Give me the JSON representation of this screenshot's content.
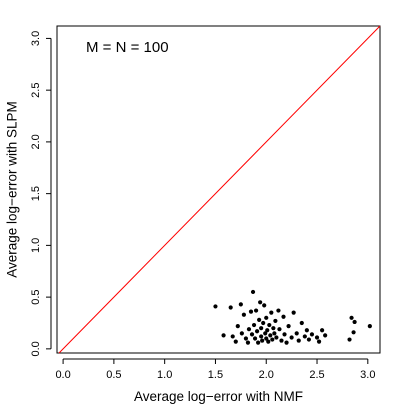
{
  "chart_data": {
    "type": "scatter",
    "xlabel": "Average log−error with NMF",
    "ylabel": "Average log−error with SLPM",
    "annotation": "M = N = 100",
    "xlim": [
      -0.06,
      3.12
    ],
    "ylim": [
      -0.04,
      3.12
    ],
    "x_ticks": [
      "0.0",
      "0.5",
      "1.0",
      "1.5",
      "2.0",
      "2.5",
      "3.0"
    ],
    "y_ticks": [
      "0.0",
      "0.5",
      "1.0",
      "1.5",
      "2.0",
      "2.5",
      "3.0"
    ],
    "grid": false,
    "reference_line": {
      "label": "y = x",
      "color": "#ff0000"
    },
    "point_color": "#000000",
    "points": [
      [
        1.5,
        0.41
      ],
      [
        1.58,
        0.13
      ],
      [
        1.65,
        0.4
      ],
      [
        1.67,
        0.12
      ],
      [
        1.7,
        0.07
      ],
      [
        1.72,
        0.22
      ],
      [
        1.75,
        0.43
      ],
      [
        1.76,
        0.15
      ],
      [
        1.78,
        0.33
      ],
      [
        1.8,
        0.1
      ],
      [
        1.82,
        0.06
      ],
      [
        1.83,
        0.19
      ],
      [
        1.85,
        0.36
      ],
      [
        1.86,
        0.14
      ],
      [
        1.87,
        0.55
      ],
      [
        1.88,
        0.23
      ],
      [
        1.89,
        0.1
      ],
      [
        1.9,
        0.37
      ],
      [
        1.91,
        0.17
      ],
      [
        1.92,
        0.06
      ],
      [
        1.93,
        0.28
      ],
      [
        1.94,
        0.45
      ],
      [
        1.95,
        0.12
      ],
      [
        1.95,
        0.2
      ],
      [
        1.96,
        0.08
      ],
      [
        1.97,
        0.25
      ],
      [
        1.98,
        0.42
      ],
      [
        1.99,
        0.15
      ],
      [
        2.0,
        0.3
      ],
      [
        2.0,
        0.1
      ],
      [
        2.01,
        0.18
      ],
      [
        2.02,
        0.07
      ],
      [
        2.03,
        0.23
      ],
      [
        2.04,
        0.13
      ],
      [
        2.05,
        0.35
      ],
      [
        2.06,
        0.09
      ],
      [
        2.07,
        0.2
      ],
      [
        2.08,
        0.15
      ],
      [
        2.09,
        0.27
      ],
      [
        2.1,
        0.11
      ],
      [
        2.12,
        0.37
      ],
      [
        2.13,
        0.19
      ],
      [
        2.15,
        0.08
      ],
      [
        2.17,
        0.31
      ],
      [
        2.18,
        0.14
      ],
      [
        2.2,
        0.06
      ],
      [
        2.22,
        0.22
      ],
      [
        2.25,
        0.11
      ],
      [
        2.27,
        0.35
      ],
      [
        2.3,
        0.15
      ],
      [
        2.32,
        0.08
      ],
      [
        2.35,
        0.25
      ],
      [
        2.38,
        0.12
      ],
      [
        2.4,
        0.18
      ],
      [
        2.42,
        0.09
      ],
      [
        2.45,
        0.14
      ],
      [
        2.5,
        0.11
      ],
      [
        2.52,
        0.07
      ],
      [
        2.55,
        0.18
      ],
      [
        2.58,
        0.13
      ],
      [
        2.82,
        0.09
      ],
      [
        2.84,
        0.3
      ],
      [
        2.86,
        0.16
      ],
      [
        2.87,
        0.26
      ],
      [
        3.02,
        0.22
      ]
    ]
  }
}
